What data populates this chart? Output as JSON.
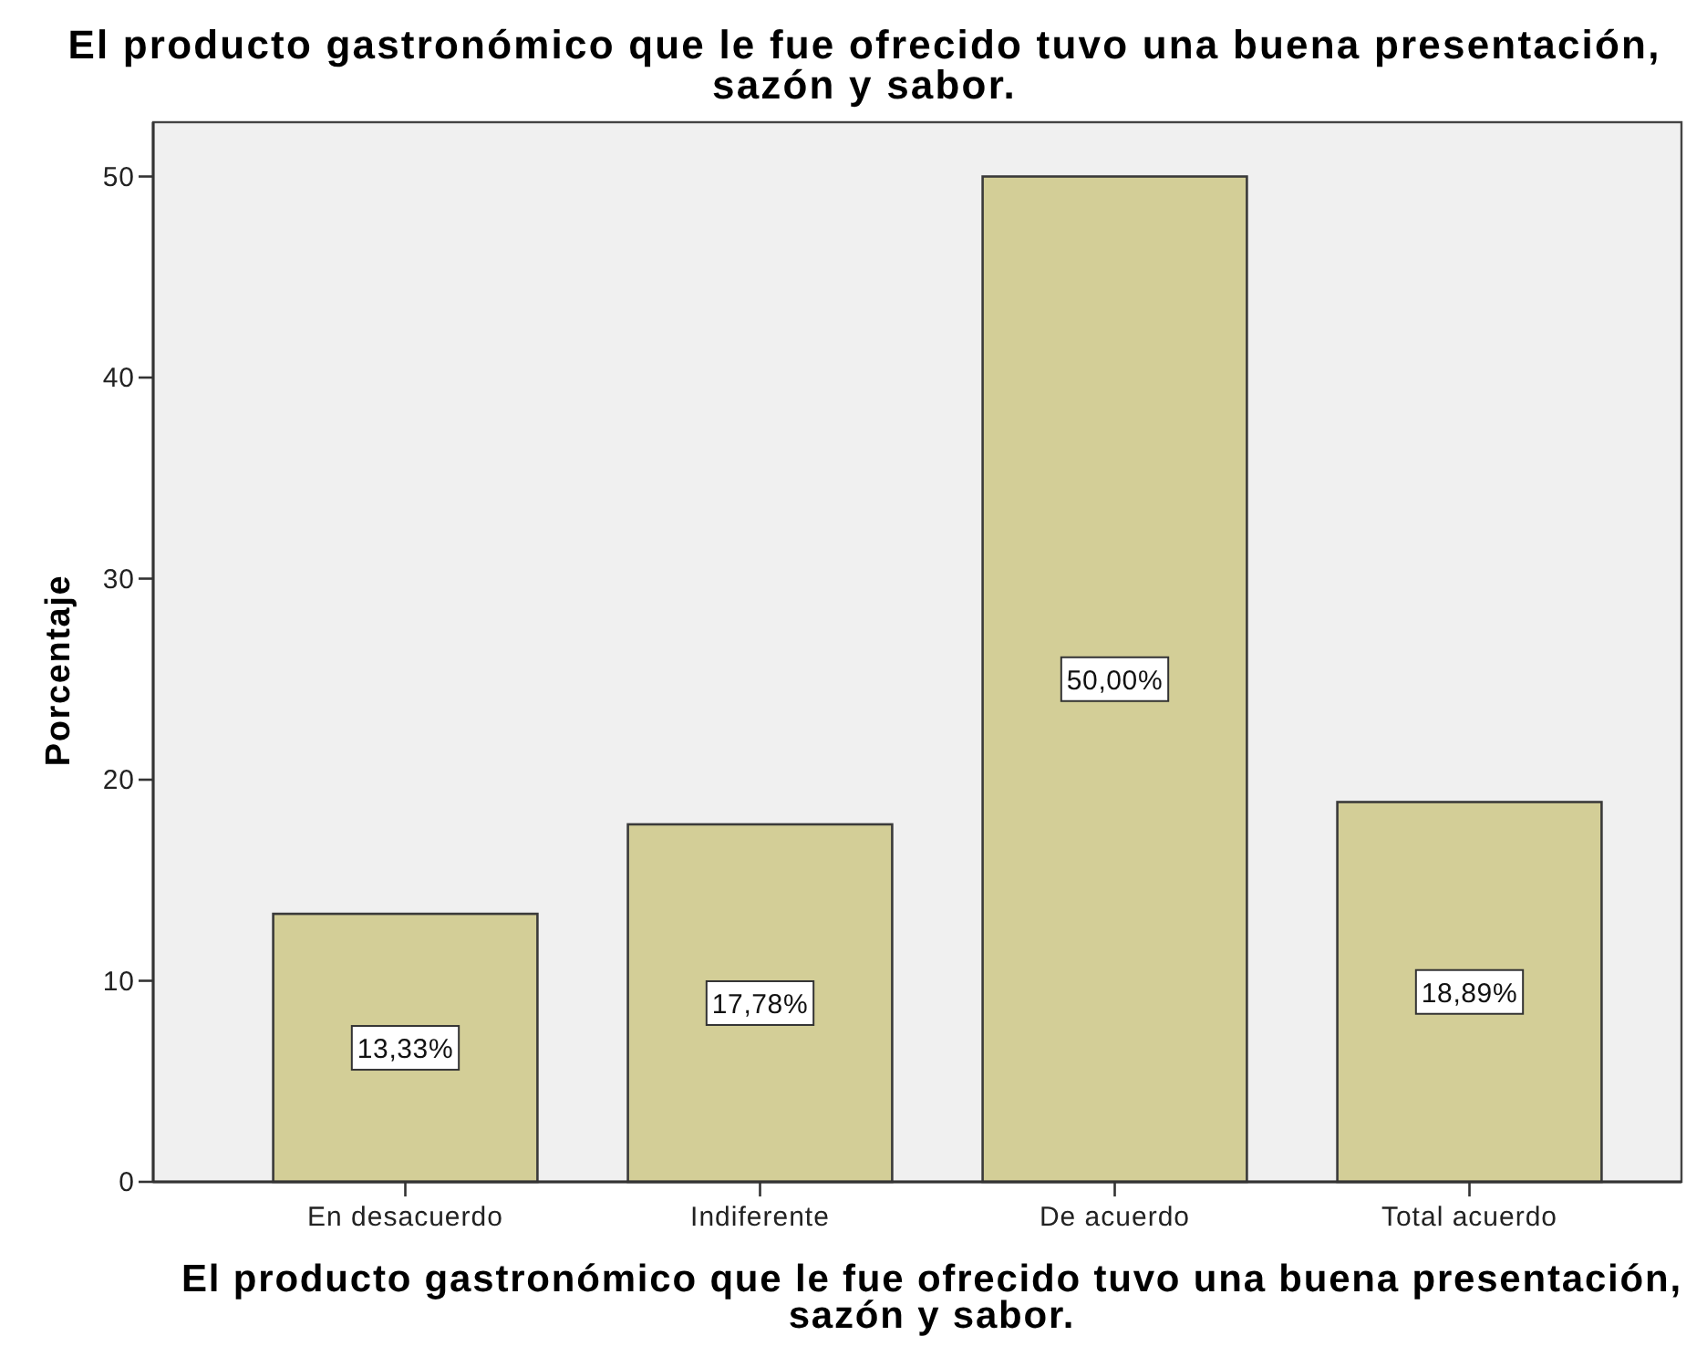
{
  "chart_data": {
    "type": "bar",
    "title": "El producto gastronómico que le fue ofrecido tuvo una buena presentación, sazón y sabor.",
    "xlabel": "El producto gastronómico que le fue ofrecido tuvo una buena presentación, sazón y sabor.",
    "ylabel": "Porcentaje",
    "categories": [
      "En desacuerdo",
      "Indiferente",
      "De acuerdo",
      "Total acuerdo"
    ],
    "values": [
      13.33,
      17.78,
      50.0,
      18.89
    ],
    "value_labels": [
      "13,33%",
      "17,78%",
      "50,00%",
      "18,89%"
    ],
    "color": "#d3ce97",
    "ylim": [
      0,
      52.7
    ],
    "yticks": [
      0,
      10,
      20,
      30,
      40,
      50
    ]
  }
}
